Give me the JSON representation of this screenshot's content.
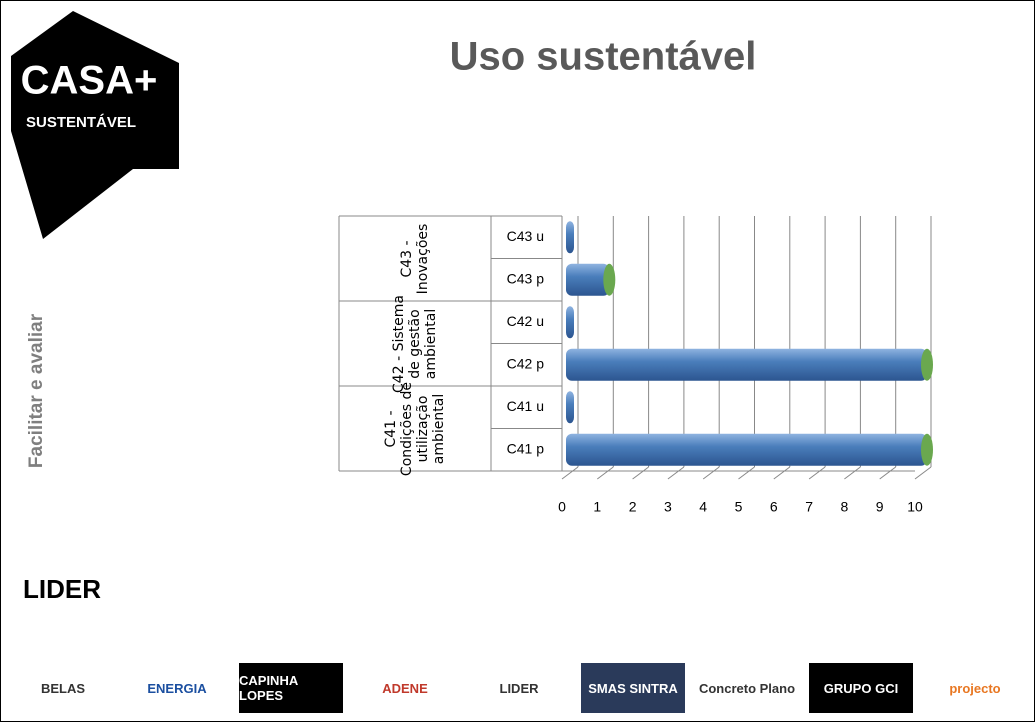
{
  "slide": {
    "title": "Uso sustentável",
    "side_text": "Facilitar e avaliar",
    "brand": {
      "main": "CASA+",
      "sub": "SUSTENTÁVEL"
    },
    "left_logo": "LIDER",
    "logos": [
      "BELAS",
      "ENERGIA",
      "CAPINHA LOPES",
      "ADENE",
      "LIDER",
      "SMAS SINTRA",
      "Concreto Plano",
      "GRUPO GCI",
      "projecto"
    ]
  },
  "chart_data": {
    "type": "bar",
    "orientation": "horizontal",
    "categories": [
      "C41 p",
      "C41 u",
      "C42 p",
      "C42 u",
      "C43 p",
      "C43 u"
    ],
    "groups": [
      "C41 - Condições de utilização ambiental",
      "C42 - Sistema de gestão ambiental",
      "C43 - Inovações"
    ],
    "values": [
      10,
      0,
      10,
      0,
      1,
      0
    ],
    "color": "#4a7ebb",
    "cap_color": "#6aa84f",
    "xlim": [
      0,
      10
    ],
    "xticks": [
      0,
      1,
      2,
      3,
      4,
      5,
      6,
      7,
      8,
      9,
      10
    ],
    "grid": true
  }
}
